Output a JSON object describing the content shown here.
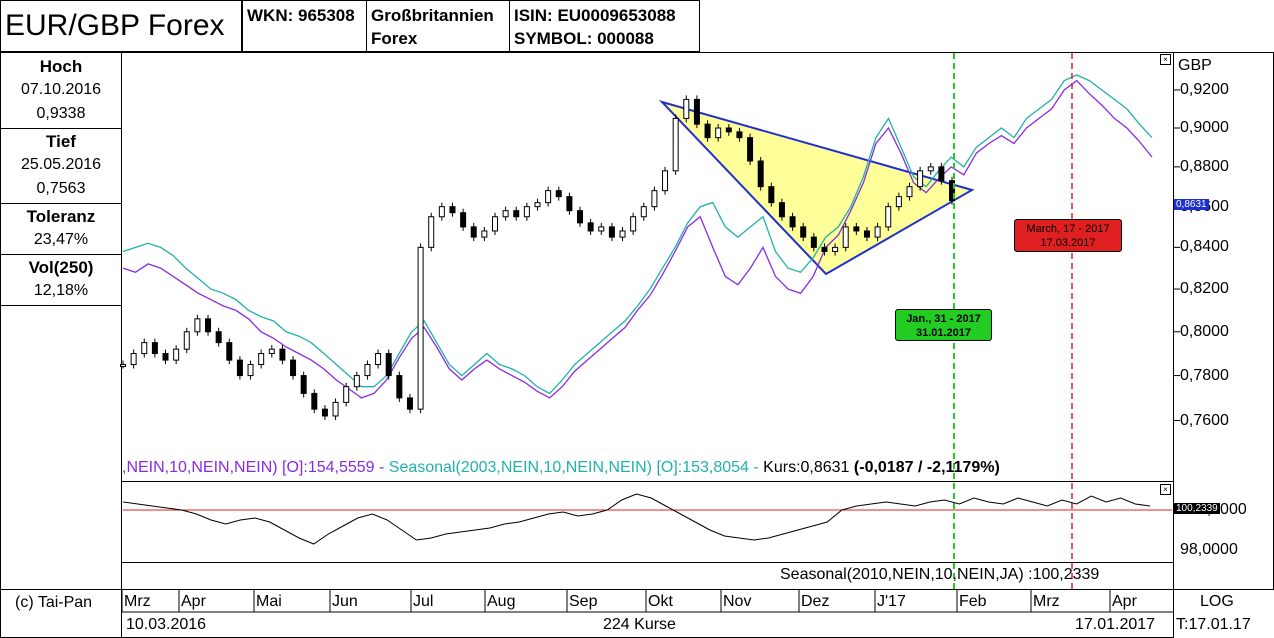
{
  "header": {
    "title": "EUR/GBP Forex",
    "wkn": "WKN: 965308",
    "exchange_line1": "Großbritannien",
    "exchange_line2": "Forex",
    "isin": "ISIN: EU0009653088",
    "symbol": "SYMBOL: 000088"
  },
  "stats": {
    "hoch_label": "Hoch",
    "hoch_date": "07.10.2016",
    "hoch_value": "0,9338",
    "tief_label": "Tief",
    "tief_date": "25.05.2016",
    "tief_value": "0,7563",
    "toleranz_label": "Toleranz",
    "toleranz_value": "23,47%",
    "vol_label": "Vol(250)",
    "vol_value": "12,18%"
  },
  "footer": {
    "copyright": "(c) Tai-Pan",
    "start_date": "10.03.2016",
    "count": "224 Kurse",
    "end_date": "17.01.2017",
    "scale": "LOG",
    "t_date": "T:17.01.17"
  },
  "colors": {
    "purple": "#8a2be2",
    "teal": "#20b2aa",
    "blue": "#1f2fd0",
    "triangle_fill": "#ffff99",
    "green_marker": "#22cc22",
    "red_marker": "#e02020",
    "ref_line": "#e02020"
  },
  "chart_data": [
    {
      "type": "line",
      "ylabel": "GBP",
      "scale": "log",
      "ylim": [
        0.745,
        0.935
      ],
      "yticks": [
        "0,9200",
        "0,9000",
        "0,8800",
        "0,8600",
        "0,8400",
        "0,8200",
        "0,8000",
        "0,7800",
        "0,7600"
      ],
      "months": [
        "Mrz",
        "Apr",
        "Mai",
        "Jun",
        "Jul",
        "Aug",
        "Sep",
        "Okt",
        "Nov",
        "Dez",
        "J'17",
        "Feb",
        "Mrz",
        "Apr"
      ],
      "legend_text_purple": ",NEIN,10,NEIN,NEIN) [O]:154,5559 - ",
      "legend_text_teal": "Seasonal(2003,NEIN,10,NEIN,NEIN) [O]:153,8054 - ",
      "legend_text_kurs": "Kurs:0,8631 ",
      "legend_text_change": "(-0,0187 / -2,1179%)",
      "last_price_label": "0,8631",
      "series": [
        {
          "values": [
            0.785,
            0.79,
            0.795,
            0.79,
            0.787,
            0.792,
            0.8,
            0.806,
            0.8,
            0.795,
            0.787,
            0.78,
            0.785,
            0.79,
            0.792,
            0.787,
            0.78,
            0.772,
            0.765,
            0.762,
            0.768,
            0.775,
            0.78,
            0.785,
            0.79,
            0.78,
            0.77,
            0.765,
            0.84,
            0.855,
            0.86,
            0.857,
            0.85,
            0.845,
            0.848,
            0.855,
            0.858,
            0.855,
            0.86,
            0.862,
            0.868,
            0.865,
            0.858,
            0.852,
            0.848,
            0.85,
            0.845,
            0.848,
            0.855,
            0.86,
            0.868,
            0.878,
            0.905,
            0.915,
            0.902,
            0.895,
            0.9,
            0.898,
            0.895,
            0.883,
            0.87,
            0.862,
            0.855,
            0.85,
            0.845,
            0.84,
            0.838,
            0.84,
            0.85,
            0.848,
            0.845,
            0.85,
            0.86,
            0.865,
            0.87,
            0.878,
            0.88,
            0.873,
            0.863
          ]
        },
        {
          "name": "Seasonal(2003,NEIN,10,NEIN,NEIN)",
          "values": [
            0.838,
            0.84,
            0.842,
            0.84,
            0.836,
            0.83,
            0.825,
            0.82,
            0.818,
            0.815,
            0.81,
            0.807,
            0.805,
            0.8,
            0.798,
            0.795,
            0.79,
            0.785,
            0.78,
            0.775,
            0.775,
            0.78,
            0.79,
            0.8,
            0.805,
            0.795,
            0.785,
            0.78,
            0.785,
            0.79,
            0.785,
            0.783,
            0.78,
            0.775,
            0.772,
            0.778,
            0.785,
            0.79,
            0.795,
            0.8,
            0.805,
            0.812,
            0.82,
            0.83,
            0.84,
            0.852,
            0.86,
            0.862,
            0.85,
            0.845,
            0.85,
            0.855,
            0.838,
            0.83,
            0.828,
            0.835,
            0.845,
            0.85,
            0.86,
            0.875,
            0.895,
            0.905,
            0.89,
            0.875,
            0.87,
            0.878,
            0.885,
            0.88,
            0.89,
            0.895,
            0.9,
            0.895,
            0.905,
            0.91,
            0.915,
            0.925,
            0.928,
            0.925,
            0.92,
            0.915,
            0.91,
            0.902,
            0.895
          ]
        },
        {
          "name": "Seasonal (purple)",
          "values": [
            0.83,
            0.828,
            0.832,
            0.83,
            0.826,
            0.822,
            0.818,
            0.815,
            0.812,
            0.81,
            0.806,
            0.8,
            0.797,
            0.793,
            0.79,
            0.787,
            0.783,
            0.778,
            0.774,
            0.77,
            0.772,
            0.778,
            0.788,
            0.797,
            0.802,
            0.793,
            0.783,
            0.778,
            0.783,
            0.787,
            0.783,
            0.78,
            0.777,
            0.773,
            0.77,
            0.775,
            0.782,
            0.787,
            0.792,
            0.797,
            0.802,
            0.81,
            0.817,
            0.827,
            0.838,
            0.85,
            0.855,
            0.84,
            0.826,
            0.822,
            0.83,
            0.84,
            0.826,
            0.82,
            0.818,
            0.826,
            0.84,
            0.846,
            0.858,
            0.872,
            0.892,
            0.9,
            0.887,
            0.872,
            0.867,
            0.874,
            0.88,
            0.876,
            0.887,
            0.892,
            0.896,
            0.892,
            0.9,
            0.905,
            0.91,
            0.92,
            0.925,
            0.918,
            0.912,
            0.905,
            0.9,
            0.893,
            0.885
          ]
        }
      ]
    },
    {
      "type": "line",
      "title": "Seasonal(2010,NEIN,10,NEIN,JA) :100,2339",
      "yticks": [
        "100,0000",
        "98,0000"
      ],
      "last_value_label": "100,2339",
      "reference": 100.0,
      "values": [
        100.4,
        100.3,
        100.2,
        100.1,
        100.0,
        99.8,
        99.5,
        99.3,
        99.5,
        99.6,
        99.4,
        99.0,
        98.6,
        98.3,
        98.8,
        99.2,
        99.6,
        99.8,
        99.5,
        99.0,
        98.5,
        98.6,
        98.8,
        98.9,
        99.0,
        99.1,
        99.3,
        99.4,
        99.6,
        99.8,
        99.9,
        99.7,
        99.8,
        100.0,
        100.5,
        100.8,
        100.6,
        100.2,
        99.8,
        99.4,
        99.0,
        98.7,
        98.6,
        98.5,
        98.6,
        98.8,
        99.0,
        99.2,
        99.4,
        100.0,
        100.2,
        100.3,
        100.4,
        100.3,
        100.2,
        100.4,
        100.5,
        100.3,
        100.6,
        100.4,
        100.3,
        100.6,
        100.4,
        100.2,
        100.5,
        100.3,
        100.7,
        100.4,
        100.6,
        100.3,
        100.2
      ]
    }
  ],
  "markers": {
    "green_label1": "Jan., 31 - 2017",
    "green_label2": "31.01.2017",
    "red_label1": "March, 17 - 2017",
    "red_label2": "17.03.2017"
  }
}
